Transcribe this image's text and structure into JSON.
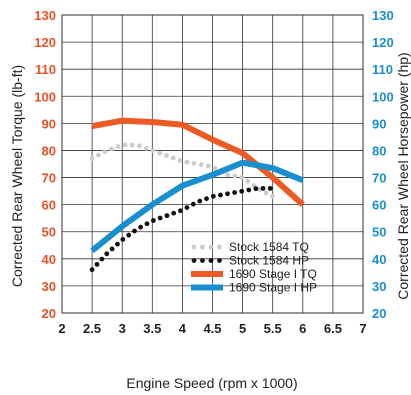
{
  "chart_data": {
    "type": "line",
    "xlabel": "Engine Speed (rpm x 1000)",
    "ylabel_left": "Corrected Rear Wheel Torque (lb-ft)",
    "ylabel_right": "Corrected Rear Wheel Horsepower (hp)",
    "xlim": [
      2,
      7
    ],
    "ylim": [
      20,
      130
    ],
    "x_ticks": [
      2,
      2.5,
      3,
      3.5,
      4,
      4.5,
      5,
      5.5,
      6,
      6.5,
      7
    ],
    "y_ticks": [
      20,
      30,
      40,
      50,
      60,
      70,
      80,
      90,
      100,
      110,
      120,
      130
    ],
    "grid": true,
    "legend_position": "bottom-right",
    "colors": {
      "left_axis": "#e8522a",
      "right_axis": "#1a8fd0"
    },
    "series": [
      {
        "name": "Stock 1584 TQ",
        "style": "dotted",
        "color": "#cccccc",
        "x": [
          2.5,
          2.75,
          3,
          3.25,
          3.5,
          3.75,
          4,
          4.25,
          4.5,
          4.75,
          5,
          5.25,
          5.5
        ],
        "y": [
          77,
          80,
          82,
          82,
          80,
          78,
          76,
          75,
          74,
          71,
          70,
          66,
          63
        ]
      },
      {
        "name": "Stock 1584 HP",
        "style": "dotted",
        "color": "#111111",
        "x": [
          2.5,
          2.75,
          3,
          3.25,
          3.5,
          3.75,
          4,
          4.25,
          4.5,
          4.75,
          5,
          5.25,
          5.5
        ],
        "y": [
          36,
          42,
          47,
          51,
          54,
          56,
          58,
          61,
          63,
          64,
          65,
          66,
          66
        ]
      },
      {
        "name": "1690 Stage I TQ",
        "style": "solid",
        "color": "#ee5a24",
        "x": [
          2.5,
          3,
          3.5,
          4,
          4.5,
          5,
          5.5,
          6
        ],
        "y": [
          89,
          91,
          90.5,
          89.5,
          84,
          79,
          70,
          60
        ]
      },
      {
        "name": "1690 Stage I HP",
        "style": "solid",
        "color": "#1a8fd0",
        "x": [
          2.5,
          3,
          3.5,
          4,
          4.5,
          5,
          5.5,
          6
        ],
        "y": [
          43,
          52,
          60,
          67,
          71,
          75.5,
          73.5,
          69
        ]
      }
    ]
  }
}
